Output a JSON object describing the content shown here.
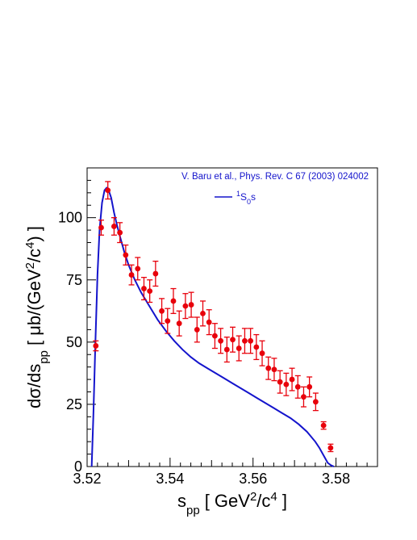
{
  "chart_data": {
    "type": "scatter",
    "xlim": [
      3.52,
      3.59
    ],
    "ylim": [
      0,
      120
    ],
    "x_ticks": [
      3.52,
      3.54,
      3.56,
      3.58
    ],
    "y_ticks": [
      0,
      25,
      50,
      75,
      100
    ],
    "x_tick_labels": [
      "3.52",
      "3.54",
      "3.56",
      "3.58"
    ],
    "y_tick_labels": [
      "0",
      "25",
      "50",
      "75",
      "100"
    ],
    "xlabel_main": "s",
    "xlabel_sub": "pp",
    "xlabel_unit_open": "[ GeV",
    "xlabel_unit_sup1": "2",
    "xlabel_unit_mid": "/c",
    "xlabel_unit_sup2": "4",
    "xlabel_unit_close": " ]",
    "ylabel_main": "dσ/ds",
    "ylabel_sub": "pp",
    "ylabel_unit_open": " [ μb/(GeV",
    "ylabel_unit_sup1": "2",
    "ylabel_unit_mid": "/c",
    "ylabel_unit_sup2": "4",
    "ylabel_unit_close": ") ]",
    "annotation": "V. Baru et al., Phys. Rev. C 67 (2003) 024002",
    "legend_sup": "1",
    "legend_main": "S",
    "legend_sub": "0",
    "legend_tail": "s",
    "legend_position": "top-right",
    "grid": false,
    "colors": {
      "data": "#e8000b",
      "curve": "#1414cc",
      "axes": "#000000",
      "annotation": "#1414cc"
    },
    "points": [
      {
        "x": 3.5221,
        "y": 48.5,
        "err": 2.0
      },
      {
        "x": 3.5234,
        "y": 96.0,
        "err": 3.0
      },
      {
        "x": 3.525,
        "y": 111.0,
        "err": 3.5
      },
      {
        "x": 3.5265,
        "y": 96.5,
        "err": 3.5
      },
      {
        "x": 3.5279,
        "y": 94.0,
        "err": 4.0
      },
      {
        "x": 3.5293,
        "y": 85.0,
        "err": 4.0
      },
      {
        "x": 3.5307,
        "y": 77.0,
        "err": 4.0
      },
      {
        "x": 3.5322,
        "y": 79.5,
        "err": 4.5
      },
      {
        "x": 3.5337,
        "y": 71.5,
        "err": 4.5
      },
      {
        "x": 3.5351,
        "y": 70.5,
        "err": 4.5
      },
      {
        "x": 3.5365,
        "y": 77.5,
        "err": 5.0
      },
      {
        "x": 3.538,
        "y": 62.5,
        "err": 5.0
      },
      {
        "x": 3.5394,
        "y": 58.5,
        "err": 5.0
      },
      {
        "x": 3.5408,
        "y": 66.5,
        "err": 5.0
      },
      {
        "x": 3.5422,
        "y": 57.5,
        "err": 5.0
      },
      {
        "x": 3.5437,
        "y": 64.5,
        "err": 5.0
      },
      {
        "x": 3.5451,
        "y": 65.0,
        "err": 5.0
      },
      {
        "x": 3.5465,
        "y": 55.0,
        "err": 5.0
      },
      {
        "x": 3.5479,
        "y": 61.5,
        "err": 5.0
      },
      {
        "x": 3.5494,
        "y": 58.0,
        "err": 5.0
      },
      {
        "x": 3.5508,
        "y": 52.5,
        "err": 5.0
      },
      {
        "x": 3.5522,
        "y": 50.5,
        "err": 5.0
      },
      {
        "x": 3.5537,
        "y": 47.0,
        "err": 5.0
      },
      {
        "x": 3.5551,
        "y": 51.0,
        "err": 5.0
      },
      {
        "x": 3.5566,
        "y": 47.5,
        "err": 5.0
      },
      {
        "x": 3.558,
        "y": 50.5,
        "err": 5.0
      },
      {
        "x": 3.5594,
        "y": 50.5,
        "err": 5.0
      },
      {
        "x": 3.5608,
        "y": 48.0,
        "err": 5.0
      },
      {
        "x": 3.5622,
        "y": 45.5,
        "err": 5.0
      },
      {
        "x": 3.5637,
        "y": 39.5,
        "err": 4.5
      },
      {
        "x": 3.5651,
        "y": 39.0,
        "err": 4.5
      },
      {
        "x": 3.5665,
        "y": 34.0,
        "err": 4.5
      },
      {
        "x": 3.568,
        "y": 33.0,
        "err": 4.5
      },
      {
        "x": 3.5694,
        "y": 35.0,
        "err": 4.5
      },
      {
        "x": 3.5708,
        "y": 32.0,
        "err": 4.5
      },
      {
        "x": 3.5722,
        "y": 28.0,
        "err": 4.0
      },
      {
        "x": 3.5736,
        "y": 32.0,
        "err": 4.0
      },
      {
        "x": 3.5751,
        "y": 26.0,
        "err": 3.5
      },
      {
        "x": 3.577,
        "y": 16.5,
        "err": 1.5
      },
      {
        "x": 3.5787,
        "y": 7.5,
        "err": 1.5
      }
    ],
    "series": [
      {
        "x": [
          3.5211,
          3.5215,
          3.522,
          3.5225,
          3.523,
          3.5236,
          3.5242,
          3.5247,
          3.5252,
          3.5258,
          3.5265,
          3.5272,
          3.528,
          3.529,
          3.53,
          3.5315,
          3.533,
          3.535,
          3.537,
          3.539,
          3.541,
          3.543,
          3.545,
          3.547,
          3.549,
          3.551,
          3.553,
          3.555,
          3.557,
          3.559,
          3.561,
          3.563,
          3.565,
          3.567,
          3.569,
          3.571,
          3.573,
          3.575,
          3.576,
          3.577,
          3.578,
          3.5788,
          3.5795
        ],
        "y": [
          0,
          20,
          50,
          77,
          95,
          106,
          111,
          112,
          111,
          108,
          102,
          97,
          92,
          86,
          81,
          75,
          70,
          64.5,
          59,
          54.5,
          50.5,
          47,
          44,
          41.5,
          39.5,
          37.5,
          35.5,
          33.5,
          31.5,
          29.5,
          27.5,
          25.5,
          23.5,
          21.5,
          19.5,
          17,
          14,
          10,
          7.5,
          4.5,
          1.5,
          0.5,
          0
        ]
      }
    ]
  }
}
